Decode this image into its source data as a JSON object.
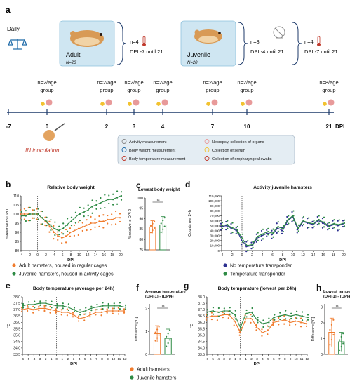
{
  "panel_a": {
    "letter": "a",
    "daily": "Daily",
    "adult": {
      "title": "Adult",
      "n": "N=20",
      "group1_n": "n=4",
      "group1_dpi": "DPI -7 until 21"
    },
    "juvenile": {
      "title": "Juvenile",
      "n": "N=20",
      "group1_n": "n=8",
      "group1_dpi": "DPI -4 until 21",
      "group2_n": "n=4",
      "group2_dpi": "DPI -7 until 21"
    },
    "groups": [
      {
        "l1": "n=2/age",
        "l2": "group"
      },
      {
        "l1": "n=2/age",
        "l2": "group"
      },
      {
        "l1": "n=2/age",
        "l2": "group"
      },
      {
        "l1": "n=2/age",
        "l2": "group"
      },
      {
        "l1": "n=2/age",
        "l2": "group"
      },
      {
        "l1": "n=2/age",
        "l2": "group"
      },
      {
        "l1": "n=8/age",
        "l2": "group"
      }
    ],
    "timeline_ticks": [
      "-7",
      "0",
      "2",
      "3",
      "4",
      "7",
      "10",
      "21"
    ],
    "timeline_unit": "DPI",
    "inoculation": "IN inoculation",
    "legend": [
      "Activity measurement",
      "Necropsy, collection of organs",
      "Body weight measurement",
      "Collection of serum",
      "Body temperature measurement",
      "Collection of oropharyngeal swabs"
    ]
  },
  "colors": {
    "adult": "#f07b2c",
    "juvenile": "#2e8b45",
    "no_transponder": "#2b2f8f",
    "transponder": "#2e8b45",
    "box": "#cfe6f2",
    "legend_box": "#e4edf3"
  },
  "panels": {
    "b": {
      "letter": "b",
      "title": "Relative body weight",
      "ylabel": "%relative to DPI 0",
      "xlabel": "DPI",
      "yticks": [
        "80",
        "85",
        "90",
        "95",
        "100",
        "105",
        "110"
      ],
      "xticks": [
        "-4",
        "-2",
        "0",
        "2",
        "4",
        "6",
        "8",
        "10",
        "12",
        "14",
        "16",
        "18",
        "20"
      ]
    },
    "c": {
      "letter": "c",
      "title": "Lowest body weight",
      "ylabel": "%relative to DPI 0",
      "ns": "ns",
      "yticks": [
        "75",
        "80",
        "85",
        "90",
        "95",
        "100"
      ]
    },
    "d": {
      "letter": "d",
      "title": "Activity juvenile hamsters",
      "ylabel": "Counts per 24h",
      "xlabel": "DPI",
      "yticks": [
        "0",
        "10,000",
        "20,000",
        "30,000",
        "40,000",
        "50,000",
        "60,000",
        "70,000",
        "80,000",
        "90,000",
        "100,000",
        "110,000"
      ],
      "xticks": [
        "-4",
        "-2",
        "0",
        "2",
        "4",
        "6",
        "8",
        "10",
        "12",
        "14",
        "16",
        "18",
        "20"
      ]
    },
    "e": {
      "letter": "e",
      "title": "Body temperature (average per 24h)",
      "ylabel": "°C",
      "xlabel": "DPI",
      "yticks": [
        "33.5",
        "34.0",
        "34.5",
        "35.0",
        "35.5",
        "36.0",
        "36.5",
        "37.0",
        "37.5",
        "38.0"
      ],
      "xticks": [
        "-6",
        "-5",
        "-4",
        "-3",
        "-2",
        "-1",
        "0",
        "1",
        "2",
        "3",
        "4",
        "5",
        "6",
        "7",
        "8",
        "9",
        "10",
        "11",
        "12"
      ]
    },
    "f": {
      "letter": "f",
      "title1": "Average temperature",
      "title2": "(DPI-1) - (DPI4)",
      "ylabel": "Difference [°C]",
      "ns": "ns",
      "yticks": [
        "0",
        "1",
        "2"
      ]
    },
    "g": {
      "letter": "g",
      "title": "Body temperature (lowest per 24h)",
      "ylabel": "°C",
      "xlabel": "DPI",
      "yticks": [
        "33.5",
        "34.0",
        "34.5",
        "35.0",
        "35.5",
        "36.0",
        "36.5",
        "37.0",
        "37.5",
        "38.0"
      ],
      "xticks": [
        "-6",
        "-5",
        "-4",
        "-3",
        "-2",
        "-1",
        "0",
        "1",
        "2",
        "3",
        "4",
        "5",
        "6",
        "7",
        "8",
        "9",
        "10",
        "11",
        "12"
      ]
    },
    "h": {
      "letter": "h",
      "title1": "Lowest temperature",
      "title2": "(DPI-1) - (DPI4)",
      "ylabel": "Difference [°C]",
      "ns": "ns",
      "yticks": [
        "0",
        "1",
        "2",
        "3"
      ]
    }
  },
  "legend_b": [
    "Adult hamsters, housed in regular cages",
    "Juvenile hamsters, housed in activity cages"
  ],
  "legend_d": [
    "No temperature transponder",
    "Temperature transponder"
  ],
  "legend_bottom": [
    "Adult hamsters",
    "Juvenile hamsters"
  ],
  "chart_data": [
    {
      "id": "b",
      "type": "line",
      "title": "Relative body weight",
      "xlabel": "DPI",
      "ylabel": "%relative to DPI 0",
      "ylim": [
        80,
        110
      ],
      "xlim": [
        -4,
        20
      ],
      "x": [
        -4,
        -3,
        -2,
        -1,
        0,
        1,
        2,
        3,
        4,
        5,
        6,
        7,
        8,
        9,
        10,
        11,
        12,
        13,
        14,
        15,
        16,
        17,
        18,
        19,
        20
      ],
      "series": [
        {
          "name": "Adult hamsters, housed in regular cages",
          "values": [
            100,
            100,
            100,
            100,
            100,
            98,
            96,
            93,
            90,
            88,
            87,
            88,
            90,
            91,
            92,
            93,
            94,
            95,
            95,
            96,
            96,
            97,
            97,
            98,
            98
          ]
        },
        {
          "name": "Juvenile hamsters, housed in activity cages",
          "values": [
            99,
            99,
            100,
            100,
            100,
            98,
            96,
            94,
            92,
            91,
            92,
            94,
            96,
            98,
            100,
            101,
            102,
            104,
            105,
            106,
            107,
            108,
            108,
            109,
            110
          ]
        }
      ]
    },
    {
      "id": "c",
      "type": "bar",
      "title": "Lowest body weight",
      "ylabel": "%relative to DPI 0",
      "ylim": [
        75,
        100
      ],
      "categories": [
        "Adult",
        "Juvenile"
      ],
      "values": [
        86,
        87
      ],
      "errors": [
        3,
        4
      ]
    },
    {
      "id": "d",
      "type": "line",
      "title": "Activity juvenile hamsters",
      "xlabel": "DPI",
      "ylabel": "Counts per 24h",
      "ylim": [
        0,
        110000
      ],
      "xlim": [
        -4,
        20
      ],
      "x": [
        -4,
        -3,
        -2,
        -1,
        0,
        1,
        2,
        3,
        4,
        5,
        6,
        7,
        8,
        9,
        10,
        11,
        12,
        13,
        14,
        15,
        16,
        17,
        18,
        19,
        20
      ],
      "series": [
        {
          "name": "No temperature transponder",
          "values": [
            48000,
            50000,
            44000,
            40000,
            20000,
            8000,
            10000,
            25000,
            30000,
            35000,
            32000,
            45000,
            40000,
            60000,
            68000,
            42000,
            58000,
            55000,
            52000,
            60000,
            55000,
            48000,
            52000,
            50000,
            54000
          ]
        },
        {
          "name": "Temperature transponder",
          "values": [
            50000,
            52000,
            46000,
            42000,
            25000,
            10000,
            12000,
            28000,
            33000,
            38000,
            35000,
            48000,
            44000,
            62000,
            70000,
            45000,
            60000,
            56000,
            54000,
            62000,
            57000,
            50000,
            54000,
            52000,
            55000
          ]
        }
      ]
    },
    {
      "id": "e",
      "type": "line",
      "title": "Body temperature (average per 24h)",
      "xlabel": "DPI",
      "ylabel": "°C",
      "ylim": [
        33.5,
        38.0
      ],
      "xlim": [
        -6,
        12
      ],
      "x": [
        -6,
        -5,
        -4,
        -3,
        -2,
        -1,
        0,
        1,
        2,
        3,
        4,
        5,
        6,
        7,
        8,
        9,
        10,
        11,
        12
      ],
      "series": [
        {
          "name": "Adult hamsters",
          "values": [
            37.0,
            37.1,
            37.0,
            37.1,
            37.1,
            37.0,
            36.9,
            36.8,
            36.8,
            36.6,
            36.3,
            36.4,
            36.6,
            36.8,
            36.8,
            36.9,
            36.9,
            36.9,
            36.9
          ]
        },
        {
          "name": "Juvenile hamsters",
          "values": [
            37.3,
            37.4,
            37.4,
            37.5,
            37.5,
            37.4,
            37.3,
            37.3,
            37.2,
            37.0,
            36.8,
            36.9,
            37.1,
            37.2,
            37.3,
            37.3,
            37.3,
            37.3,
            37.2
          ]
        }
      ]
    },
    {
      "id": "f",
      "type": "bar",
      "title": "Average temperature (DPI-1) - (DPI4)",
      "ylabel": "Difference [°C]",
      "ylim": [
        0,
        2.2
      ],
      "categories": [
        "Adult",
        "Juvenile"
      ],
      "values": [
        0.9,
        0.7
      ],
      "errors": [
        0.35,
        0.4
      ]
    },
    {
      "id": "g",
      "type": "line",
      "title": "Body temperature (lowest per 24h)",
      "xlabel": "DPI",
      "ylabel": "°C",
      "ylim": [
        33.5,
        38.0
      ],
      "xlim": [
        -6,
        12
      ],
      "x": [
        -6,
        -5,
        -4,
        -3,
        -2,
        -1,
        0,
        1,
        2,
        3,
        4,
        5,
        6,
        7,
        8,
        9,
        10,
        11,
        12
      ],
      "series": [
        {
          "name": "Adult hamsters",
          "values": [
            36.4,
            36.5,
            36.5,
            36.6,
            36.6,
            36.1,
            35.2,
            36.3,
            36.3,
            35.6,
            35.2,
            35.4,
            36.0,
            36.1,
            36.2,
            36.0,
            36.1,
            36.0,
            35.9
          ]
        },
        {
          "name": "Juvenile hamsters",
          "values": [
            36.8,
            36.9,
            36.8,
            36.9,
            36.9,
            36.6,
            35.6,
            36.7,
            36.8,
            36.2,
            35.9,
            36.0,
            36.4,
            36.5,
            36.6,
            36.5,
            36.6,
            36.5,
            36.4
          ]
        }
      ]
    },
    {
      "id": "h",
      "type": "bar",
      "title": "Lowest temperature (DPI-1) - (DPI4)",
      "ylabel": "Difference [°C]",
      "ylim": [
        0,
        3.2
      ],
      "categories": [
        "Adult",
        "Juvenile"
      ],
      "values": [
        1.4,
        0.8
      ],
      "errors": [
        0.9,
        0.6
      ]
    }
  ]
}
